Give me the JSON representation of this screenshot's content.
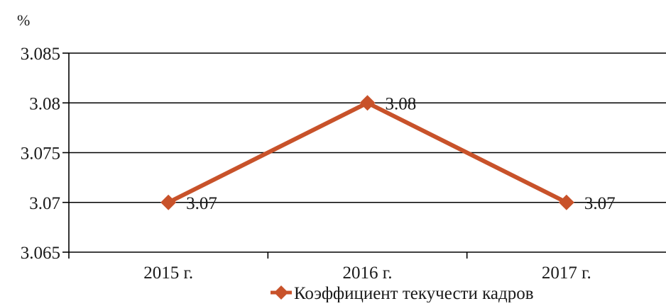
{
  "chart_data": {
    "type": "line",
    "unit_label": "%",
    "categories": [
      "2015 г.",
      "2016 г.",
      "2017 г."
    ],
    "series": [
      {
        "name": "Коэффициент текучести кадров",
        "values": [
          3.07,
          3.08,
          3.07
        ],
        "color": "#c8522a"
      }
    ],
    "data_labels": [
      "3.07",
      "3.08",
      "3.07"
    ],
    "y_ticks": [
      "3.065",
      "3.07",
      "3.075",
      "3.08",
      "3.085"
    ],
    "ylim": [
      3.065,
      3.085
    ],
    "grid": true,
    "legend": "bottom-right"
  }
}
